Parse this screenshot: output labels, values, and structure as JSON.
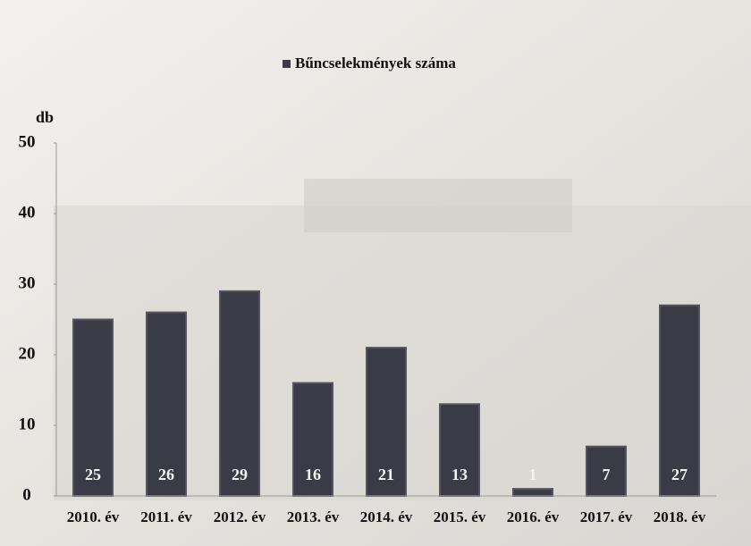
{
  "chart_data": {
    "type": "bar",
    "ylabel": "db",
    "categories": [
      "2010. év",
      "2011. év",
      "2012. év",
      "2013. év",
      "2014. év",
      "2015. év",
      "2016. év",
      "2017. év",
      "2018. év"
    ],
    "series": [
      {
        "name": "Bűncselekmények száma",
        "color": "#3b3b47",
        "values": [
          25,
          26,
          29,
          16,
          21,
          13,
          1,
          7,
          27
        ]
      }
    ],
    "ylim": [
      0,
      50
    ],
    "yticks": [
      0,
      10,
      20,
      30,
      40,
      50
    ],
    "data_labels": true,
    "legend": "top"
  }
}
